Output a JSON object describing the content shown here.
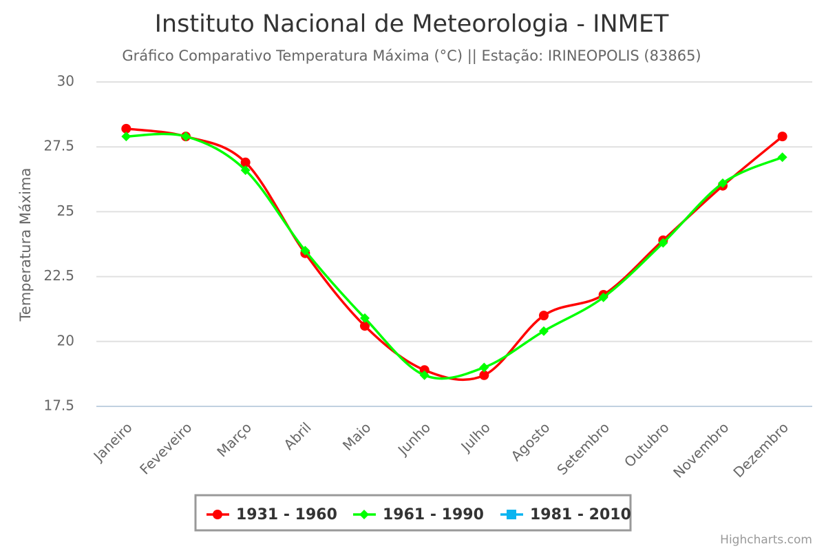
{
  "chart_data": {
    "type": "line",
    "title": "Instituto Nacional de Meteorologia - INMET",
    "subtitle": "Gráfico Comparativo Temperatura Máxima (°C) || Estação: IRINEOPOLIS (83865)",
    "y_axis_label": "Temperatura Máxima",
    "credits": "Highcharts.com",
    "categories": [
      "Janeiro",
      "Feveveiro",
      "Março",
      "Abril",
      "Maio",
      "Junho",
      "Julho",
      "Agosto",
      "Setembro",
      "Outubro",
      "Novembro",
      "Dezembro"
    ],
    "series": [
      {
        "name": "1931 - 1960",
        "color": "#ff0000",
        "marker": "circle",
        "values": [
          28.2,
          27.9,
          26.9,
          23.4,
          20.6,
          18.9,
          18.7,
          21.0,
          21.8,
          23.9,
          26.0,
          27.9
        ]
      },
      {
        "name": "1961 - 1990",
        "color": "#00ff00",
        "marker": "diamond",
        "values": [
          27.9,
          27.9,
          26.6,
          23.5,
          20.9,
          18.7,
          19.0,
          20.4,
          21.7,
          23.8,
          26.1,
          27.1
        ]
      },
      {
        "name": "1981 - 2010",
        "color": "#0ab4f0",
        "marker": "square",
        "values": [
          null,
          null,
          null,
          null,
          null,
          null,
          null,
          null,
          null,
          null,
          null,
          null
        ]
      }
    ],
    "ylim": [
      17.5,
      30
    ],
    "yticks": [
      17.5,
      20,
      22.5,
      25,
      27.5,
      30
    ],
    "grid": true
  }
}
